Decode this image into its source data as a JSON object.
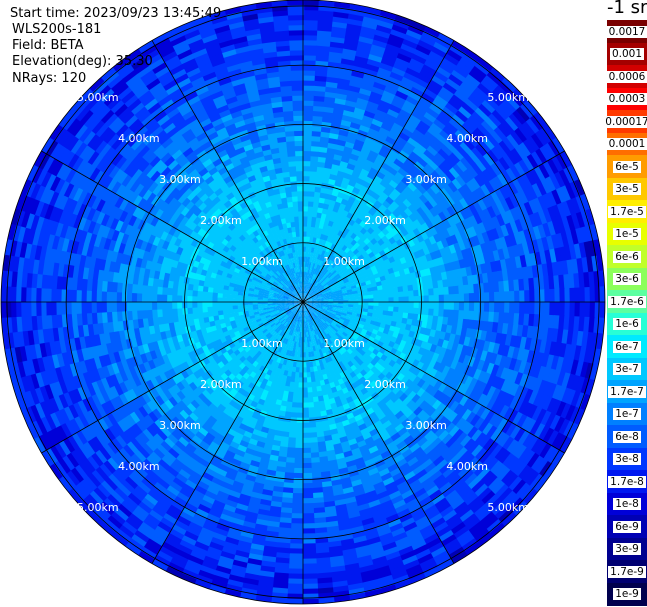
{
  "header": {
    "start_time": "Start time: 2023/09/23 13:45:49",
    "device": "WLS200s-181",
    "field": "Field: BETA",
    "elevation": "Elevation(deg): 35.30",
    "nrays": "NRays: 120"
  },
  "colorbar": {
    "unit": "-1 sr",
    "ticks": [
      "0.0017",
      "0.001",
      "0.0006",
      "0.0003",
      "0.00017",
      "0.0001",
      "6e-5",
      "3e-5",
      "1.7e-5",
      "1e-5",
      "6e-6",
      "3e-6",
      "1.7e-6",
      "1e-6",
      "6e-7",
      "3e-7",
      "1.7e-7",
      "1e-7",
      "6e-8",
      "3e-8",
      "1.7e-8",
      "1e-8",
      "6e-9",
      "3e-9",
      "1.7e-9",
      "1e-9"
    ],
    "colors": [
      "#7a0000",
      "#a40000",
      "#d20000",
      "#ff0000",
      "#ff3a00",
      "#ff6e00",
      "#ff9c00",
      "#ffc800",
      "#ffee00",
      "#e8ff00",
      "#c0ff2a",
      "#8cff5c",
      "#5cffa0",
      "#28ffd6",
      "#00eaff",
      "#00c8ff",
      "#00a4ff",
      "#0080ff",
      "#005cff",
      "#0038ff",
      "#0018f0",
      "#0000d8",
      "#0000b4",
      "#000090",
      "#000070",
      "#00004e"
    ]
  },
  "chart_data": {
    "type": "heatmap",
    "projection": "polar PPI scan",
    "nrays": 120,
    "ring_labels": [
      "1.00km",
      "2.00km",
      "3.00km",
      "4.00km",
      "5.00km"
    ],
    "ring_ranges_km": [
      1,
      2,
      3,
      4,
      5
    ],
    "max_range_km": 5.1,
    "colormap_ticks": [
      "0.0017",
      "0.001",
      "0.0006",
      "0.0003",
      "0.00017",
      "0.0001",
      "6e-5",
      "3e-5",
      "1.7e-5",
      "1e-5",
      "6e-6",
      "3e-6",
      "1.7e-6",
      "1e-6",
      "6e-7",
      "3e-7",
      "1.7e-7",
      "1e-7",
      "6e-8",
      "3e-8",
      "1.7e-8",
      "1e-8",
      "6e-9",
      "3e-9",
      "1.7e-9",
      "1e-9"
    ],
    "beta_profile": [
      {
        "range_km": 0.3,
        "beta": "1.7e-7"
      },
      {
        "range_km": 1.0,
        "beta": "3e-7"
      },
      {
        "range_km": 2.0,
        "beta": "3e-7"
      },
      {
        "range_km": 2.5,
        "beta": "1.7e-7"
      },
      {
        "range_km": 3.5,
        "beta": "6e-8"
      },
      {
        "range_km": 4.5,
        "beta": "3e-8"
      },
      {
        "range_km": 5.0,
        "beta": "1.7e-8"
      }
    ],
    "grid": true,
    "spokes_deg": [
      0,
      30,
      60,
      90,
      120,
      150,
      180,
      210,
      240,
      270,
      300,
      330
    ]
  }
}
